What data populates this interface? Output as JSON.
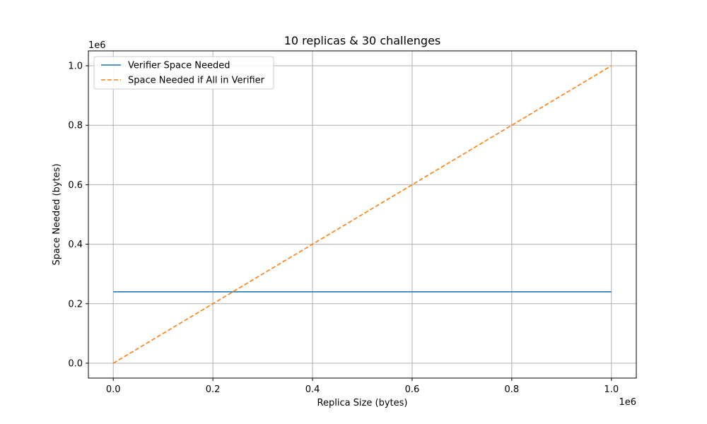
{
  "chart_data": {
    "type": "line",
    "title": "10 replicas & 30 challenges",
    "xlabel": "Replica Size (bytes)",
    "ylabel": "Space Needed (bytes)",
    "x_offset_label": "1e6",
    "y_offset_label": "1e6",
    "x_scale": 1000000,
    "y_scale": 1000000,
    "xlim": [
      -50000,
      1050000
    ],
    "ylim": [
      -50000,
      1050000
    ],
    "x_ticks": [
      0,
      200000,
      400000,
      600000,
      800000,
      1000000
    ],
    "x_tick_labels": [
      "0.0",
      "0.2",
      "0.4",
      "0.6",
      "0.8",
      "1.0"
    ],
    "y_ticks": [
      0,
      200000,
      400000,
      600000,
      800000,
      1000000
    ],
    "y_tick_labels": [
      "0.0",
      "0.2",
      "0.4",
      "0.6",
      "0.8",
      "1.0"
    ],
    "grid": true,
    "legend_position": "top-left",
    "series": [
      {
        "name": "Verifier Space Needed",
        "color": "#1f77b4",
        "style": "solid",
        "x": [
          0,
          1000000
        ],
        "y": [
          240000,
          240000
        ]
      },
      {
        "name": "Space Needed if All in Verifier",
        "color": "#ff7f0e",
        "style": "dashed",
        "x": [
          0,
          1000000
        ],
        "y": [
          0,
          1000000
        ]
      }
    ]
  }
}
